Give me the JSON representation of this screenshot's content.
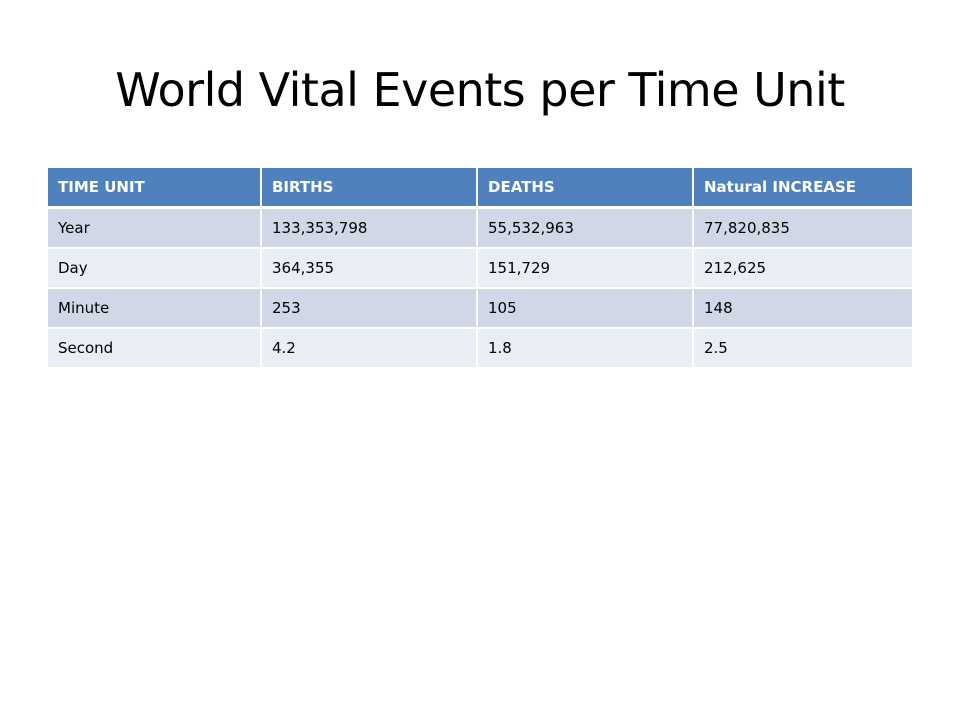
{
  "slide": {
    "title": "World Vital Events per Time Unit"
  },
  "table": {
    "columns": [
      "TIME UNIT",
      "BIRTHS",
      "DEATHS",
      "Natural  INCREASE"
    ],
    "rows": [
      [
        "Year",
        "133,353,798",
        "55,532,963",
        "77,820,835"
      ],
      [
        "Day",
        "364,355",
        "151,729",
        "212,625"
      ],
      [
        "Minute",
        "253",
        "105",
        "148"
      ],
      [
        "Second",
        "4.2",
        "1.8",
        "2.5"
      ]
    ]
  },
  "colors": {
    "header_bg": "#4f81bd",
    "row_band_dark": "#d0d8e8",
    "row_band_light": "#e9edf4",
    "header_text": "#ffffff",
    "body_text": "#000000"
  }
}
